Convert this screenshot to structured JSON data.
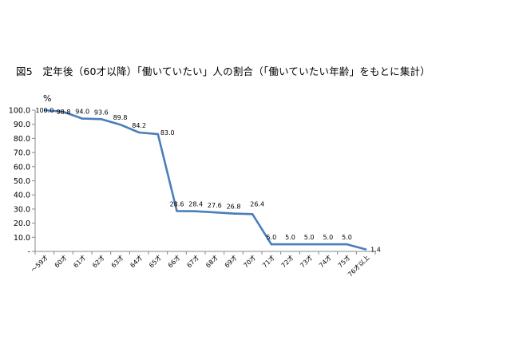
{
  "chart_data": {
    "type": "line",
    "title": "図5　定年後（60才以降）「働いていたい」人の割合（「働いていたい年齢」をもとに集計）",
    "ylabel": "%",
    "xlabel": "",
    "ylim": [
      0,
      100
    ],
    "ytick_labels": [
      "-",
      "10.0",
      "20.0",
      "30.0",
      "40.0",
      "50.0",
      "60.0",
      "70.0",
      "80.0",
      "90.0",
      "100.0"
    ],
    "categories": [
      "～59才",
      "60才",
      "61才",
      "62才",
      "63才",
      "64才",
      "65才",
      "66才",
      "67才",
      "68才",
      "69才",
      "70才",
      "71才",
      "72才",
      "73才",
      "74才",
      "75才",
      "76才以上"
    ],
    "series": [
      {
        "values": [
          100.0,
          98.8,
          94.0,
          93.6,
          89.8,
          84.2,
          83.0,
          28.6,
          28.4,
          27.6,
          26.8,
          26.4,
          5.0,
          5.0,
          5.0,
          5.0,
          5.0,
          1.4
        ],
        "value_labels": [
          "100.0",
          "98.8",
          "94.0",
          "93.6",
          "89.8",
          "84.2",
          "83.0",
          "28.6",
          "28.4",
          "27.6",
          "26.8",
          "26.4",
          "5.0",
          "5.0",
          "5.0",
          "5.0",
          "5.0",
          "1.4"
        ],
        "color": "#4a7ebb"
      }
    ],
    "grid": false,
    "legend": "none"
  }
}
